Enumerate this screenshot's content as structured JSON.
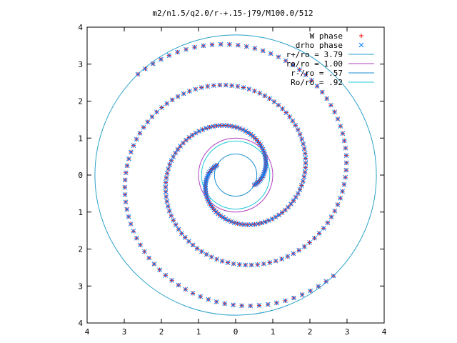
{
  "chart_data": {
    "type": "scatter",
    "title": "m2/n1.5/q2.0/r-+.15-j79/M100.0/512",
    "xlim": [
      -4,
      4
    ],
    "ylim": [
      -4,
      4
    ],
    "x_tick_labels": [
      "4",
      "3",
      "2",
      "1",
      "0",
      "1",
      "2",
      "3",
      "4"
    ],
    "y_tick_labels": [
      "4",
      "3",
      "2",
      "1",
      "0",
      "1",
      "2",
      "3",
      "4"
    ],
    "tick_values": [
      -4,
      -3,
      -2,
      -1,
      0,
      1,
      2,
      3,
      4
    ],
    "legend_position": "top-right",
    "series": [
      {
        "name": "W phase",
        "kind": "points",
        "marker": "plus",
        "color": "#ff0000",
        "spiral": {
          "r_inner": 0.57,
          "r_outer": 3.79,
          "theta_start_deg": 152,
          "turns": 1.45,
          "n_points": 140,
          "arms": 2
        }
      },
      {
        "name": "drho phase",
        "kind": "points",
        "marker": "cross",
        "color": "#0080ff",
        "spiral": {
          "r_inner": 0.57,
          "r_outer": 3.79,
          "theta_start_deg": 152,
          "turns": 1.45,
          "n_points": 140,
          "arms": 2
        }
      },
      {
        "name": "r+/ro = 3.79",
        "kind": "circle",
        "r": 3.79,
        "color": "#2aa0c8"
      },
      {
        "name": "ro/ro = 1.00",
        "kind": "circle",
        "r": 1.0,
        "color": "#b040c0"
      },
      {
        "name": "r-/ro = .57",
        "kind": "circle",
        "r": 0.57,
        "color": "#1a8fd0"
      },
      {
        "name": "Ro/ro = .92",
        "kind": "circle",
        "r": 0.92,
        "color": "#20c8d8"
      }
    ]
  }
}
